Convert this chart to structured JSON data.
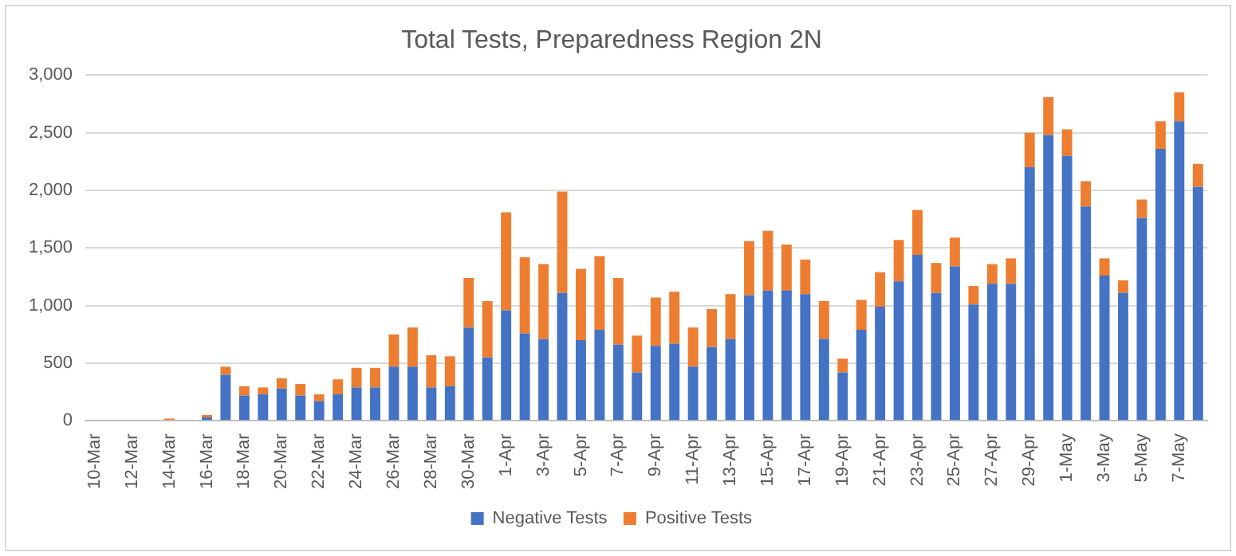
{
  "chart_data": {
    "type": "bar",
    "title": "Total Tests, Preparedness Region 2N",
    "stacked": true,
    "grid": "y",
    "legend": "bottom",
    "categories": [
      "10-Mar",
      null,
      "12-Mar",
      null,
      "14-Mar",
      null,
      "16-Mar",
      null,
      "18-Mar",
      null,
      "20-Mar",
      null,
      "22-Mar",
      null,
      "24-Mar",
      null,
      "26-Mar",
      null,
      "28-Mar",
      null,
      "30-Mar",
      null,
      "1-Apr",
      null,
      "3-Apr",
      null,
      "5-Apr",
      null,
      "7-Apr",
      null,
      "9-Apr",
      null,
      "11-Apr",
      null,
      "13-Apr",
      null,
      "15-Apr",
      null,
      "17-Apr",
      null,
      "19-Apr",
      null,
      "21-Apr",
      null,
      "23-Apr",
      null,
      "25-Apr",
      null,
      "27-Apr",
      null,
      "29-Apr",
      null,
      "1-May",
      null,
      "3-May",
      null,
      "5-May",
      null,
      "7-May",
      null
    ],
    "ylim": [
      0,
      3000
    ],
    "yticks": [
      0,
      {
        "value": 500,
        "label": "500"
      },
      {
        "value": 1000,
        "label": "1,000"
      },
      {
        "value": 1500,
        "label": "1,500"
      },
      {
        "value": 2000,
        "label": "2,000"
      },
      {
        "value": 2500,
        "label": "2,500"
      },
      {
        "value": 3000,
        "label": "3,000"
      }
    ],
    "series": [
      {
        "name": "Negative Tests",
        "color": "#4472c4",
        "values": [
          0,
          0,
          0,
          0,
          0,
          0,
          30,
          400,
          220,
          230,
          280,
          220,
          170,
          230,
          290,
          290,
          470,
          470,
          290,
          300,
          810,
          550,
          960,
          760,
          710,
          1110,
          700,
          790,
          660,
          420,
          650,
          670,
          470,
          640,
          710,
          1090,
          1130,
          1130,
          1100,
          710,
          420,
          790,
          990,
          1210,
          1440,
          1110,
          1340,
          1010,
          1190,
          1190,
          2200,
          2480,
          2300,
          1860,
          1260,
          1110,
          1760,
          2360,
          2600,
          2030
        ]
      },
      {
        "name": "Positive Tests",
        "color": "#ed7d31",
        "values": [
          0,
          0,
          0,
          0,
          20,
          0,
          20,
          70,
          80,
          60,
          90,
          100,
          60,
          130,
          170,
          170,
          280,
          340,
          280,
          260,
          430,
          490,
          850,
          660,
          650,
          880,
          620,
          640,
          580,
          320,
          420,
          450,
          340,
          330,
          390,
          470,
          520,
          400,
          300,
          330,
          120,
          260,
          300,
          360,
          390,
          260,
          250,
          160,
          170,
          220,
          300,
          330,
          230,
          220,
          150,
          110,
          160,
          240,
          250,
          200
        ]
      }
    ]
  }
}
